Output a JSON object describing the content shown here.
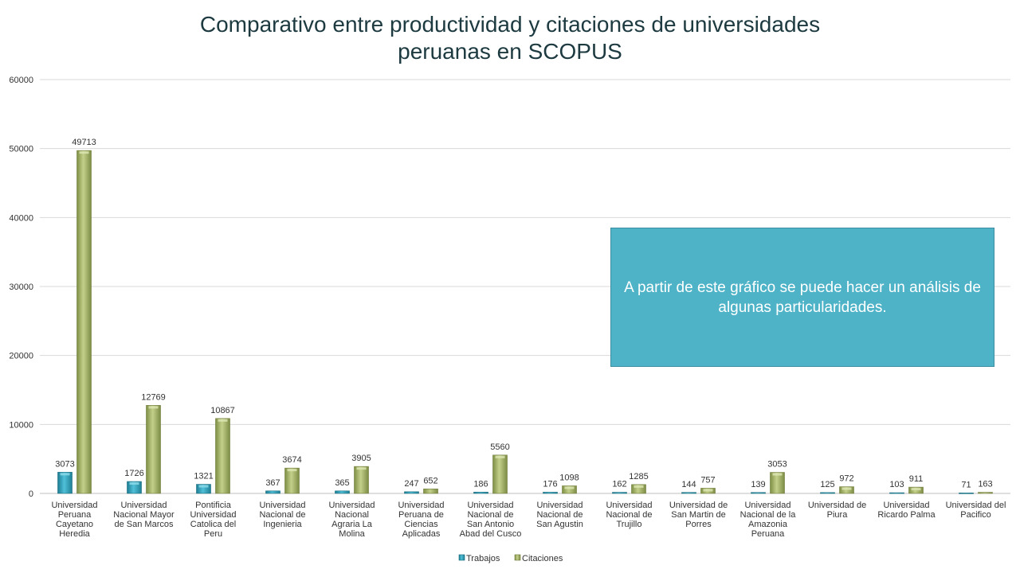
{
  "title_line1": "Comparativo entre productividad y citaciones de universidades",
  "title_line2": "peruanas en SCOPUS",
  "callout_text": "A partir de este gráfico se puede hacer un análisis de algunas particularidades.",
  "chart_data": {
    "type": "bar",
    "title": "Comparativo entre productividad y citaciones de universidades peruanas en SCOPUS",
    "xlabel": "",
    "ylabel": "",
    "ylim": [
      0,
      60000
    ],
    "yticks": [
      0,
      10000,
      20000,
      30000,
      40000,
      50000,
      60000
    ],
    "grid": true,
    "legend_position": "bottom",
    "categories": [
      "Universidad Peruana Cayetano Heredia",
      "Universidad Nacional Mayor de San Marcos",
      "Pontificia Universidad Catolica del Peru",
      "Universidad Nacional de Ingenieria",
      "Universidad Nacional Agraria La Molina",
      "Universidad Peruana de Ciencias Aplicadas",
      "Universidad Nacional de San Antonio Abad del Cusco",
      "Universidad Nacional de San Agustin",
      "Universidad Nacional de Trujillo",
      "Universidad de San Martin de Porres",
      "Universidad Nacional de la Amazonia Peruana",
      "Universidad de Piura",
      "Universidad Ricardo Palma",
      "Universidad del Pacifico"
    ],
    "category_lines": [
      [
        "Universidad",
        "Peruana",
        "Cayetano",
        "Heredia"
      ],
      [
        "Universidad",
        "Nacional Mayor",
        "de San Marcos"
      ],
      [
        "Pontificia",
        "Universidad",
        "Catolica del",
        "Peru"
      ],
      [
        "Universidad",
        "Nacional de",
        "Ingenieria"
      ],
      [
        "Universidad",
        "Nacional",
        "Agraria La",
        "Molina"
      ],
      [
        "Universidad",
        "Peruana de",
        "Ciencias",
        "Aplicadas"
      ],
      [
        "Universidad",
        "Nacional de",
        "San Antonio",
        "Abad del Cusco"
      ],
      [
        "Universidad",
        "Nacional de",
        "San Agustin"
      ],
      [
        "Universidad",
        "Nacional de",
        "Trujillo"
      ],
      [
        "Universidad de",
        "San Martin de",
        "Porres"
      ],
      [
        "Universidad",
        "Nacional de la",
        "Amazonia",
        "Peruana"
      ],
      [
        "Universidad de",
        "Piura"
      ],
      [
        "Universidad",
        "Ricardo Palma"
      ],
      [
        "Universidad del",
        "Pacifico"
      ]
    ],
    "series": [
      {
        "name": "Trabajos",
        "color": "#2e9fb8",
        "values": [
          3073,
          1726,
          1321,
          367,
          365,
          247,
          186,
          176,
          162,
          144,
          139,
          125,
          103,
          71
        ]
      },
      {
        "name": "Citaciones",
        "color": "#a4b566",
        "values": [
          49713,
          12769,
          10867,
          3674,
          3905,
          652,
          5560,
          1098,
          1285,
          757,
          3053,
          972,
          911,
          163
        ]
      }
    ]
  }
}
